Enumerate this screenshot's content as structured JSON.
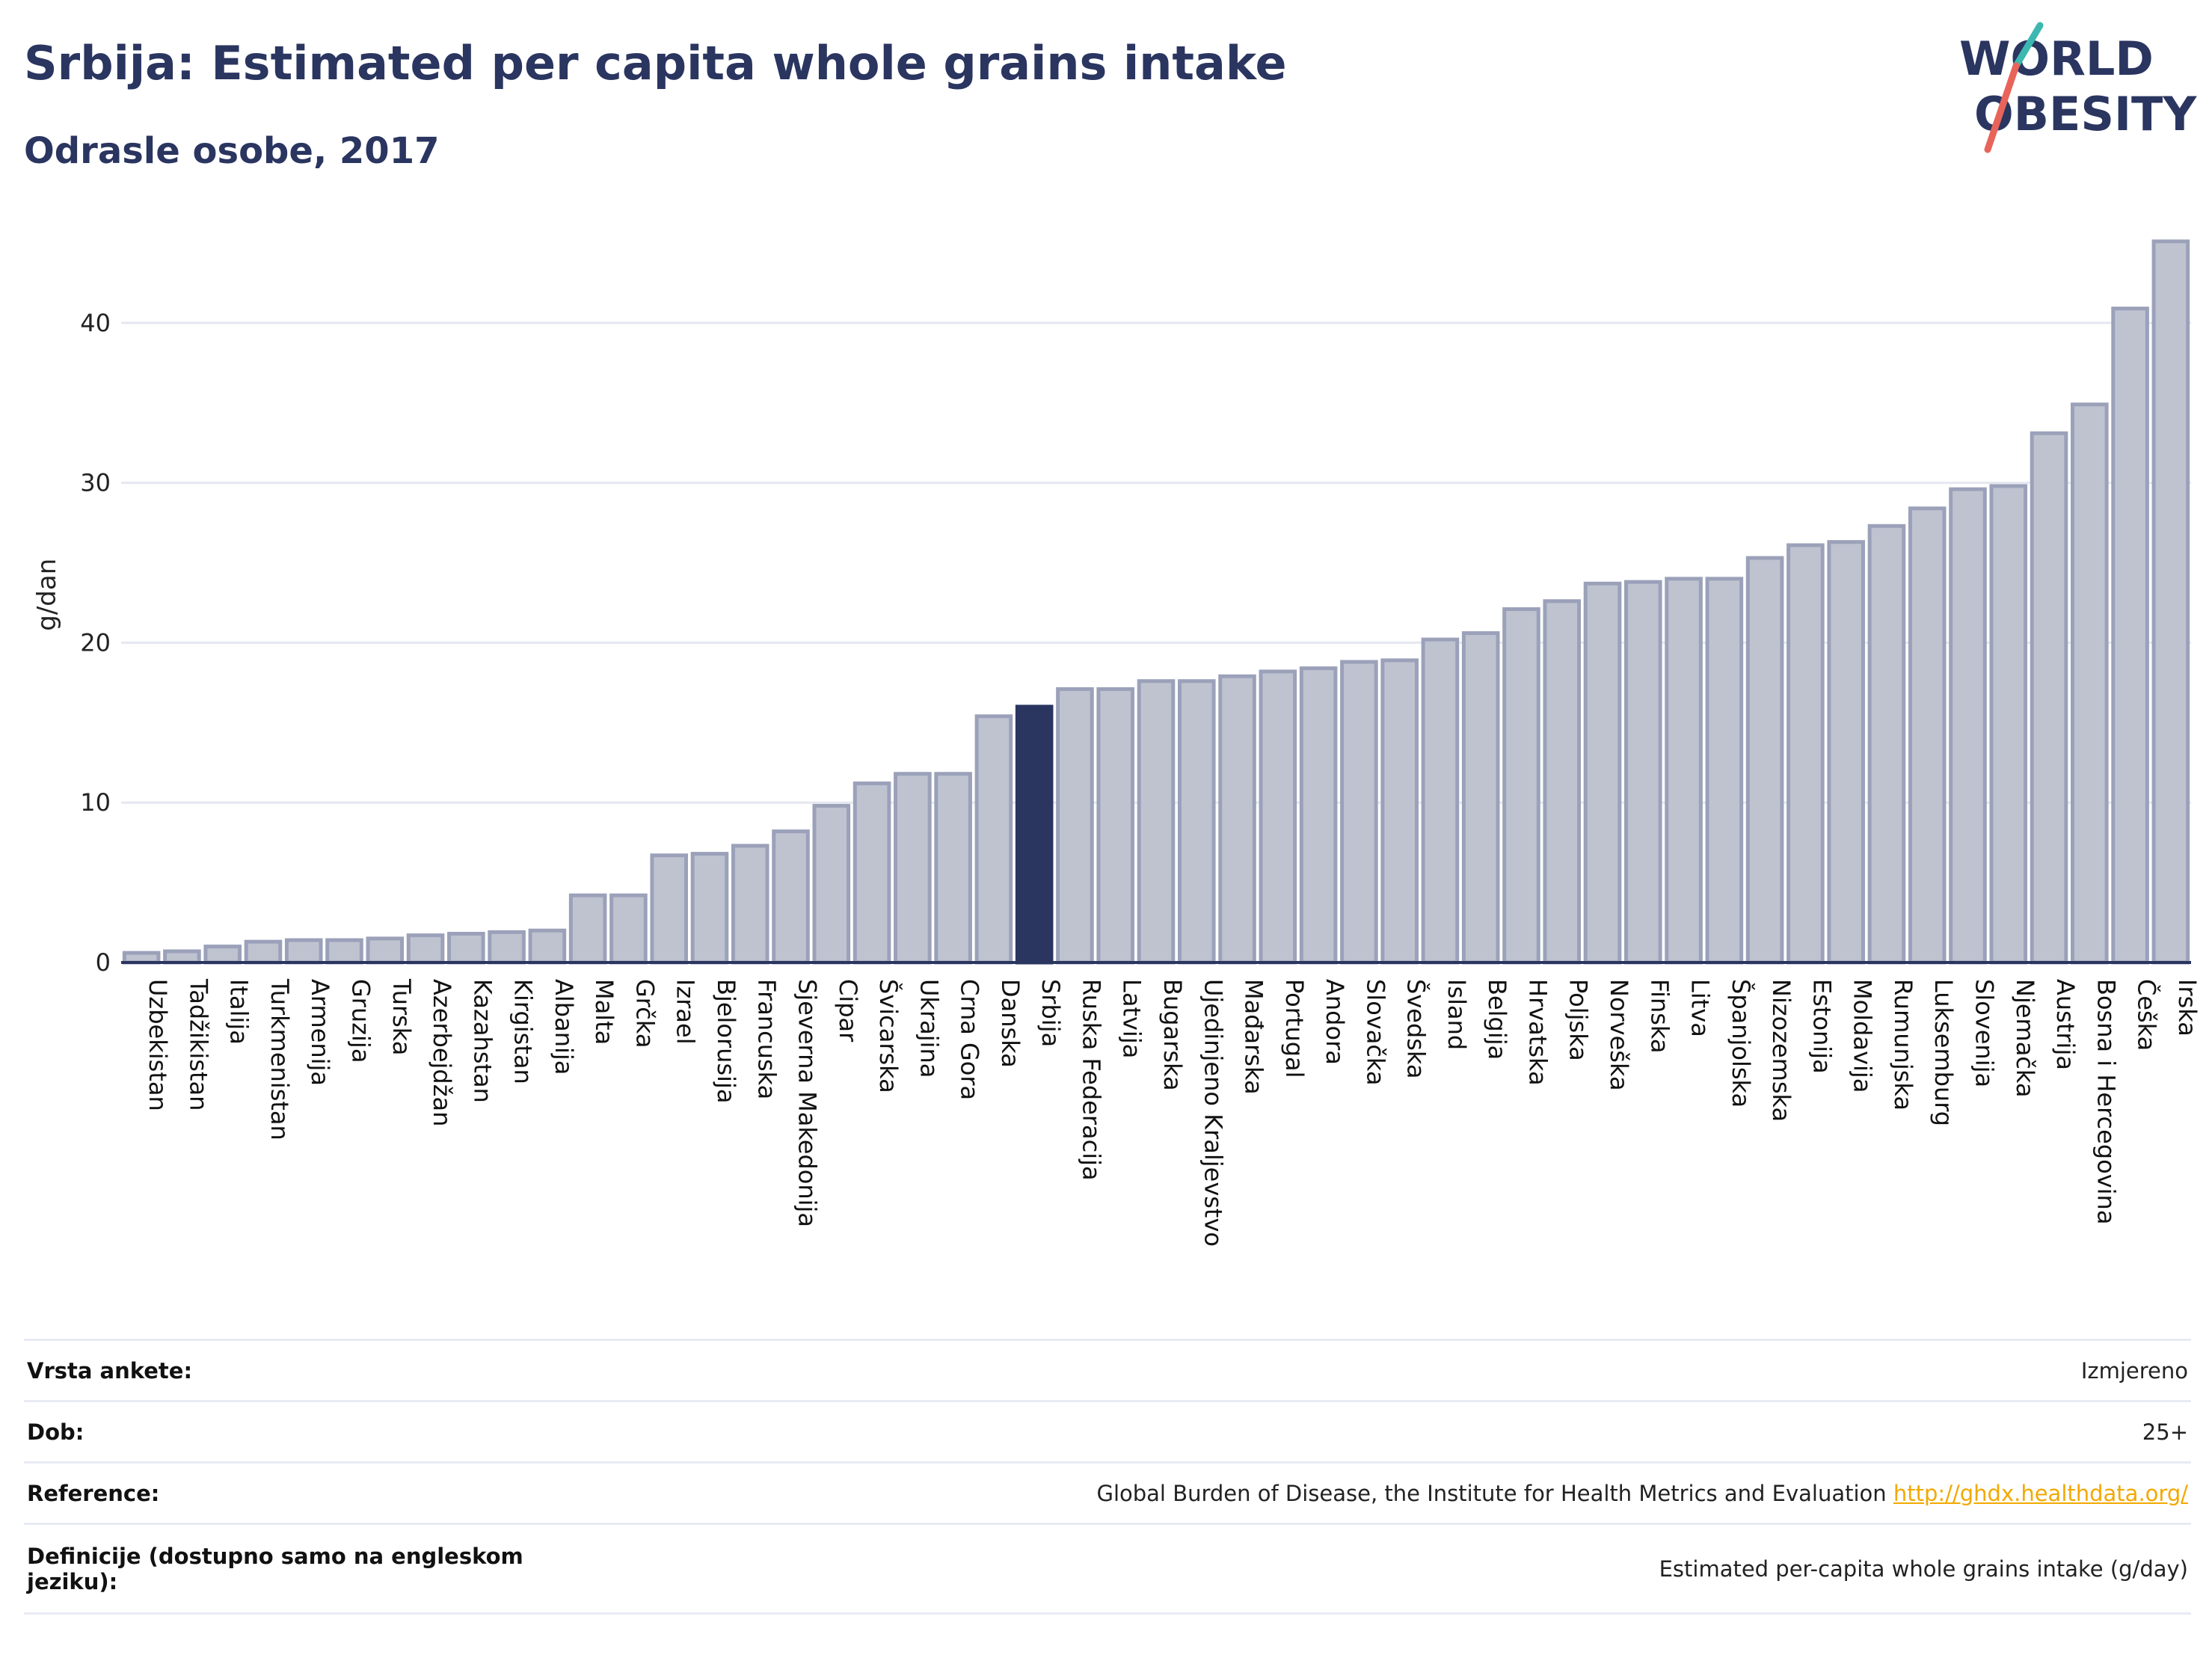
{
  "header": {
    "title": "Srbija: Estimated per capita whole grains intake",
    "subtitle": "Odrasle osobe, 2017"
  },
  "logo": {
    "line1": "WORLD",
    "line2": "OBESITY"
  },
  "colors": {
    "bar": "#bfc3d0",
    "bar_border": "#9ba1b9",
    "highlight": "#2a3560",
    "title": "#2a3560",
    "grid": "#e4e7ef",
    "link": "#f2a900",
    "logo_teal": "#3cb8b0",
    "logo_red": "#e8645a"
  },
  "chart_data": {
    "type": "bar",
    "ylabel": "g/dan",
    "ylim": [
      0,
      46
    ],
    "yticks": [
      0,
      10,
      20,
      30,
      40
    ],
    "highlight": "Srbija",
    "grid": true,
    "categories": [
      "Uzbekistan",
      "Tadžikistan",
      "Italija",
      "Turkmenistan",
      "Armenija",
      "Gruzija",
      "Turska",
      "Azerbejdžan",
      "Kazahstan",
      "Kirgistan",
      "Albanija",
      "Malta",
      "Grčka",
      "Izrael",
      "Bjelorusija",
      "Francuska",
      "Sjeverna Makedonija",
      "Cipar",
      "Švicarska",
      "Ukrajina",
      "Crna Gora",
      "Danska",
      "Srbija",
      "Ruska Federacija",
      "Latvija",
      "Bugarska",
      "Ujedinjeno Kraljevstvo",
      "Mađarska",
      "Portugal",
      "Andora",
      "Slovačka",
      "Švedska",
      "Island",
      "Belgija",
      "Hrvatska",
      "Poljska",
      "Norveška",
      "Finska",
      "Litva",
      "Španjolska",
      "Nizozemska",
      "Estonija",
      "Moldavija",
      "Rumunjska",
      "Luksemburg",
      "Slovenija",
      "Njemačka",
      "Austrija",
      "Bosna i Hercegovina",
      "Češka",
      "Irska"
    ],
    "values": [
      0.6,
      0.7,
      1.0,
      1.3,
      1.4,
      1.4,
      1.5,
      1.7,
      1.8,
      1.9,
      2.0,
      4.2,
      4.2,
      6.7,
      6.8,
      7.3,
      8.2,
      9.8,
      11.2,
      11.8,
      11.8,
      15.4,
      16.0,
      17.1,
      17.1,
      17.6,
      17.6,
      17.9,
      18.2,
      18.4,
      18.8,
      18.9,
      20.2,
      20.6,
      22.1,
      22.6,
      23.7,
      23.8,
      24.0,
      24.0,
      25.3,
      26.1,
      26.3,
      27.3,
      28.4,
      29.6,
      29.8,
      33.1,
      34.9,
      40.9,
      45.1
    ]
  },
  "info": {
    "rows": [
      {
        "key": "Vrsta ankete:",
        "value": "Izmjereno"
      },
      {
        "key": "Dob:",
        "value": "25+"
      },
      {
        "key": "Reference:",
        "value": "Global Burden of Disease, the Institute for Health Metrics and Evaluation",
        "link": "http://ghdx.healthdata.org/"
      },
      {
        "key": "Definicije (dostupno samo na engleskom jeziku):",
        "value": "Estimated per-capita whole grains intake (g/day)"
      }
    ]
  }
}
